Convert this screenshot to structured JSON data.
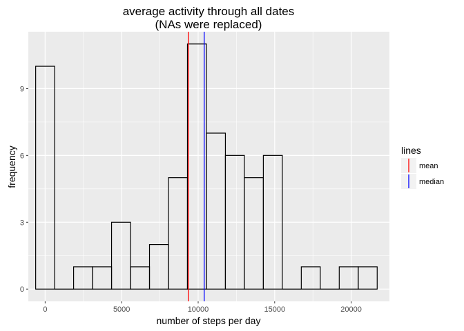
{
  "chart_data": {
    "type": "bar",
    "title_line1": "average activity through all dates",
    "title_line2": "(NAs were replaced)",
    "xlabel": "number of steps per day",
    "ylabel": "frequency",
    "xlim": [
      -1100,
      22500
    ],
    "ylim": [
      -0.55,
      11.55
    ],
    "x_ticks": [
      0,
      5000,
      10000,
      15000,
      20000
    ],
    "x_tick_labels": [
      "0",
      "5000",
      "10000",
      "15000",
      "20000"
    ],
    "y_ticks": [
      0,
      3,
      6,
      9
    ],
    "y_tick_labels": [
      "0",
      "3",
      "6",
      "9"
    ],
    "bin_width": 1240,
    "bins": [
      {
        "center": 0,
        "count": 10
      },
      {
        "center": 1240,
        "count": 0
      },
      {
        "center": 2480,
        "count": 1
      },
      {
        "center": 3720,
        "count": 1
      },
      {
        "center": 4960,
        "count": 3
      },
      {
        "center": 6200,
        "count": 1
      },
      {
        "center": 7440,
        "count": 2
      },
      {
        "center": 8680,
        "count": 5
      },
      {
        "center": 9920,
        "count": 11
      },
      {
        "center": 11160,
        "count": 7
      },
      {
        "center": 12400,
        "count": 6
      },
      {
        "center": 13640,
        "count": 5
      },
      {
        "center": 14880,
        "count": 6
      },
      {
        "center": 16120,
        "count": 0
      },
      {
        "center": 17360,
        "count": 1
      },
      {
        "center": 18600,
        "count": 0
      },
      {
        "center": 19840,
        "count": 1
      },
      {
        "center": 21080,
        "count": 1
      }
    ],
    "vlines": [
      {
        "name": "mean",
        "x": 9354,
        "color": "#ff0000"
      },
      {
        "name": "median",
        "x": 10395,
        "color": "#0000ff"
      }
    ],
    "legend": {
      "title": "lines",
      "placement": "right",
      "items": [
        "mean",
        "median"
      ]
    },
    "grid": true,
    "panel_background": "#ebebeb",
    "grid_major_color": "#ffffff"
  }
}
